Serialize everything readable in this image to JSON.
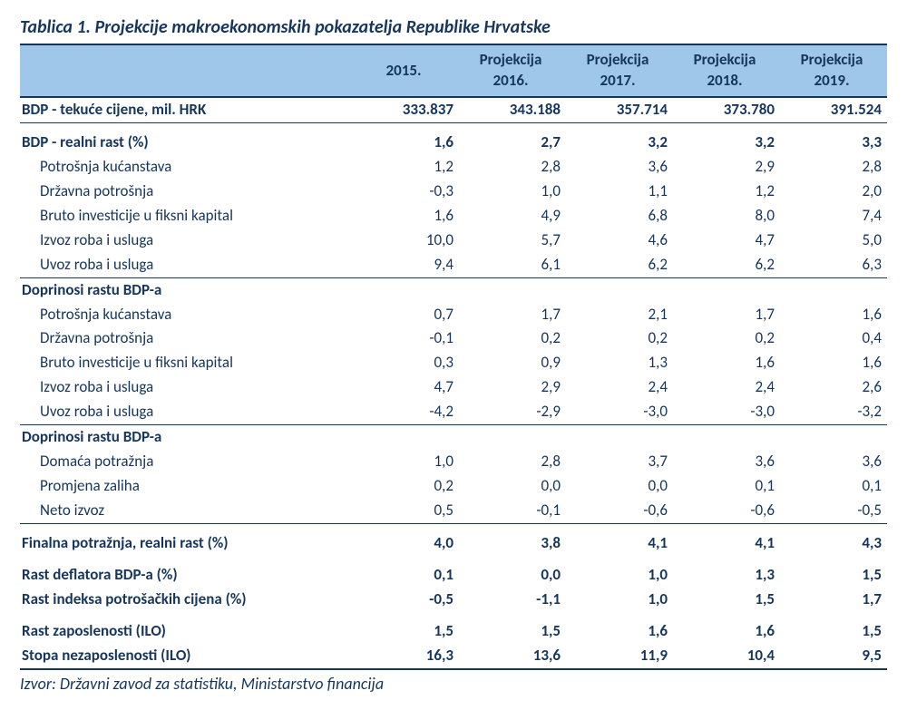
{
  "caption": "Tablica 1. Projekcije makroekonomskih pokazatelja Republike Hrvatske",
  "source": "Izvor: Državni zavod za statistiku, Ministarstvo financija",
  "colors": {
    "header_bg": "#9ec7e9",
    "text": "#16365d",
    "rule": "#16365d",
    "background": "#ffffff"
  },
  "header": {
    "label_col": "",
    "cols": [
      {
        "line1": "",
        "line2": "2015."
      },
      {
        "line1": "Projekcija",
        "line2": "2016."
      },
      {
        "line1": "Projekcija",
        "line2": "2017."
      },
      {
        "line1": "Projekcija",
        "line2": "2018."
      },
      {
        "line1": "Projekcija",
        "line2": "2019."
      }
    ]
  },
  "rows": [
    {
      "label": "BDP - tekuće cijene, mil. HRK",
      "vals": [
        "333.837",
        "343.188",
        "357.714",
        "373.780",
        "391.524"
      ],
      "bold": true,
      "rule_below": true
    },
    {
      "label": "BDP - realni rast (%)",
      "vals": [
        "1,6",
        "2,7",
        "3,2",
        "3,2",
        "3,3"
      ],
      "bold": true,
      "gap_above": true
    },
    {
      "label": "Potrošnja kućanstava",
      "vals": [
        "1,2",
        "2,8",
        "3,6",
        "2,9",
        "2,8"
      ],
      "indent": true
    },
    {
      "label": "Državna potrošnja",
      "vals": [
        "-0,3",
        "1,0",
        "1,1",
        "1,2",
        "2,0"
      ],
      "indent": true
    },
    {
      "label": "Bruto investicije u fiksni kapital",
      "vals": [
        "1,6",
        "4,9",
        "6,8",
        "8,0",
        "7,4"
      ],
      "indent": true
    },
    {
      "label": "Izvoz roba i usluga",
      "vals": [
        "10,0",
        "5,7",
        "4,6",
        "4,7",
        "5,0"
      ],
      "indent": true
    },
    {
      "label": "Uvoz roba i usluga",
      "vals": [
        "9,4",
        "6,1",
        "6,2",
        "6,2",
        "6,3"
      ],
      "indent": true,
      "rule_below": true
    },
    {
      "label": "Doprinosi rastu BDP-a",
      "vals": [
        "",
        "",
        "",
        "",
        ""
      ],
      "bold": true
    },
    {
      "label": "Potrošnja kućanstava",
      "vals": [
        "0,7",
        "1,7",
        "2,1",
        "1,7",
        "1,6"
      ],
      "indent": true
    },
    {
      "label": "Državna potrošnja",
      "vals": [
        "-0,1",
        "0,2",
        "0,2",
        "0,2",
        "0,4"
      ],
      "indent": true
    },
    {
      "label": "Bruto investicije u fiksni kapital",
      "vals": [
        "0,3",
        "0,9",
        "1,3",
        "1,6",
        "1,6"
      ],
      "indent": true
    },
    {
      "label": "Izvoz roba i usluga",
      "vals": [
        "4,7",
        "2,9",
        "2,4",
        "2,4",
        "2,6"
      ],
      "indent": true
    },
    {
      "label": "Uvoz roba i usluga",
      "vals": [
        "-4,2",
        "-2,9",
        "-3,0",
        "-3,0",
        "-3,2"
      ],
      "indent": true,
      "rule_below": true
    },
    {
      "label": "Doprinosi rastu BDP-a",
      "vals": [
        "",
        "",
        "",
        "",
        ""
      ],
      "bold": true
    },
    {
      "label": "Domaća potražnja",
      "vals": [
        "1,0",
        "2,8",
        "3,7",
        "3,6",
        "3,6"
      ],
      "indent": true
    },
    {
      "label": "Promjena zaliha",
      "vals": [
        "0,2",
        "0,0",
        "0,0",
        "0,1",
        "0,1"
      ],
      "indent": true
    },
    {
      "label": "Neto izvoz",
      "vals": [
        "0,5",
        "-0,1",
        "-0,6",
        "-0,6",
        "-0,5"
      ],
      "indent": true,
      "rule_below": true
    },
    {
      "label": "Finalna potražnja, realni rast (%)",
      "vals": [
        "4,0",
        "3,8",
        "4,1",
        "4,1",
        "4,3"
      ],
      "bold": true,
      "gap_above": true
    },
    {
      "label": "Rast deflatora BDP-a (%)",
      "vals": [
        "0,1",
        "0,0",
        "1,0",
        "1,3",
        "1,5"
      ],
      "bold": true,
      "gap_above": true
    },
    {
      "label": "Rast indeksa potrošačkih cijena (%)",
      "vals": [
        "-0,5",
        "-1,1",
        "1,0",
        "1,5",
        "1,7"
      ],
      "bold": true
    },
    {
      "label": "Rast zaposlenosti (ILO)",
      "vals": [
        "1,5",
        "1,5",
        "1,6",
        "1,6",
        "1,5"
      ],
      "bold": true,
      "gap_above": true
    },
    {
      "label": "Stopa nezaposlenosti (ILO)",
      "vals": [
        "16,3",
        "13,6",
        "11,9",
        "10,4",
        "9,5"
      ],
      "bold": true,
      "final_rule": true
    }
  ]
}
